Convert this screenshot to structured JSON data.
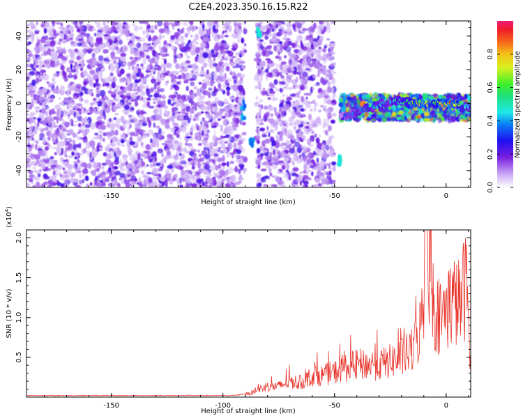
{
  "title": "C2E4.2023.350.16.15.R22",
  "colors": {
    "snr_line": "#e8332a",
    "axis": "#000000"
  },
  "chart_data": [
    {
      "type": "heatmap",
      "title": "C2E4.2023.350.16.15.R22",
      "xlabel": "Height of straight line (km)",
      "ylabel": "Frequency (Hz)",
      "xlim": [
        -188,
        11
      ],
      "ylim": [
        -50,
        49
      ],
      "xticks": [
        -150,
        -100,
        -50,
        0
      ],
      "yticks": [
        -40,
        -20,
        0,
        20,
        40
      ],
      "colorbar": {
        "label": "Normalized spectral amplitude",
        "range": [
          0,
          1
        ],
        "ticks": [
          "0.0",
          "0.2",
          "0.4",
          "0.6",
          "0.8"
        ],
        "colormap": "rainbow (white → violet → blue → cyan → green → yellow → orange → red → magenta)"
      },
      "regions": [
        {
          "desc": "low-amplitude noise speckle",
          "x_range": [
            -188,
            -90
          ],
          "freq_range": [
            -50,
            49
          ],
          "amplitude": [
            0.05,
            0.25
          ]
        },
        {
          "desc": "data gap",
          "x_range": [
            -90,
            -85
          ],
          "freq_range": [
            -50,
            49
          ],
          "amplitude": 0
        },
        {
          "desc": "low-amplitude noise speckle",
          "x_range": [
            -85,
            -50
          ],
          "freq_range": [
            -50,
            49
          ],
          "amplitude": [
            0.05,
            0.25
          ]
        },
        {
          "desc": "signal band near 0 Hz",
          "x_range": [
            -47,
            11
          ],
          "freq_range": [
            -10,
            5
          ],
          "amplitude": [
            0.2,
            0.9
          ]
        }
      ],
      "signal_band": {
        "x": [
          -47,
          -44,
          -40,
          -35,
          -30,
          -25,
          -20,
          -15,
          -10,
          -5,
          0,
          5,
          10
        ],
        "center_freq": [
          -9,
          -7,
          -5,
          -3,
          -1,
          1,
          1,
          0,
          0,
          0,
          0,
          0,
          -2
        ],
        "amplitude": [
          0.25,
          0.35,
          0.45,
          0.5,
          0.5,
          0.45,
          0.55,
          0.75,
          0.8,
          0.75,
          0.85,
          0.85,
          0.4
        ]
      }
    },
    {
      "type": "line",
      "xlabel": "Height of straight line (km)",
      "ylabel": "SNR (10 * v/v)",
      "y_multiplier": "(x10",
      "y_multiplier_exp": "4",
      "y_multiplier_close": ")",
      "xlim": [
        -188,
        11
      ],
      "ylim": [
        0,
        2.1
      ],
      "xticks": [
        -150,
        -100,
        -50,
        0
      ],
      "yticks": [
        "0.5",
        "1.0",
        "1.5",
        "2.0"
      ],
      "series": [
        {
          "x": [
            -188,
            -170,
            -150,
            -130,
            -110,
            -95,
            -88,
            -85,
            -80,
            -75,
            -70,
            -65,
            -60,
            -55,
            -50,
            -45,
            -40,
            -35,
            -30,
            -25,
            -20,
            -15,
            -12,
            -10,
            -8,
            -5,
            -2,
            0,
            3,
            6,
            9,
            11
          ],
          "y": [
            0.02,
            0.02,
            0.02,
            0.02,
            0.02,
            0.02,
            0.05,
            0.1,
            0.15,
            0.15,
            0.22,
            0.2,
            0.3,
            0.3,
            0.35,
            0.4,
            0.45,
            0.45,
            0.45,
            0.5,
            0.55,
            0.65,
            0.9,
            1.3,
            2.05,
            1.2,
            1.1,
            1.25,
            1.35,
            1.3,
            1.6,
            0.6
          ]
        }
      ]
    }
  ]
}
